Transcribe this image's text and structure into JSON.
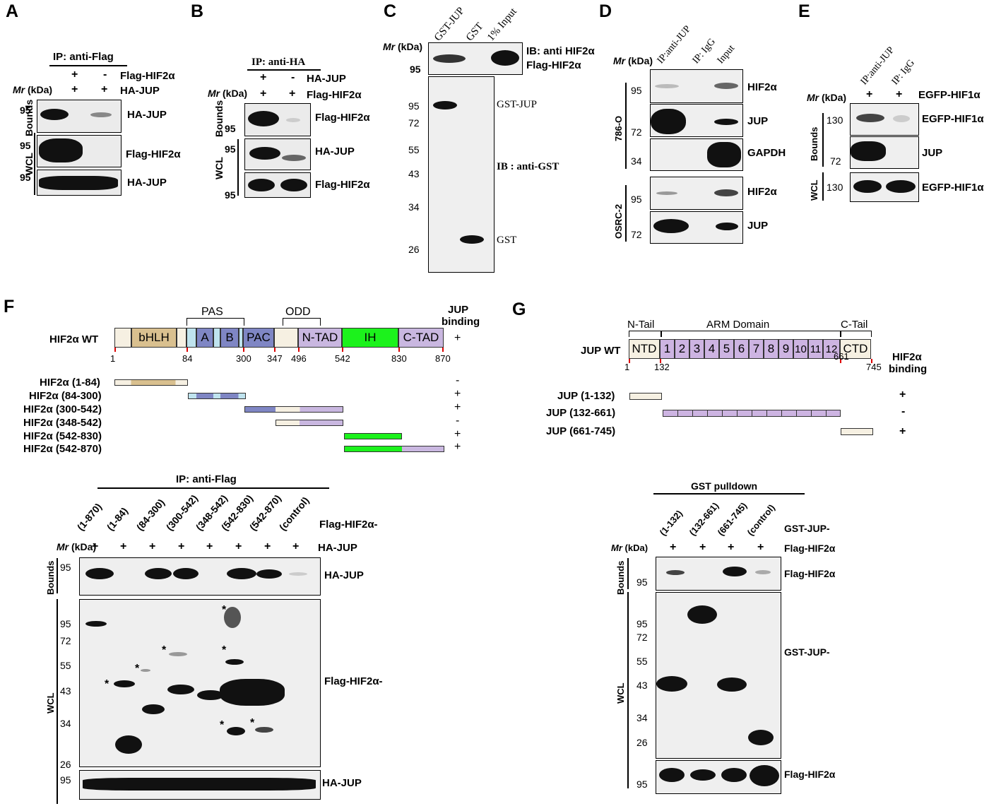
{
  "panels": {
    "A": "A",
    "B": "B",
    "C": "C",
    "D": "D",
    "E": "E",
    "F": "F",
    "G": "G"
  },
  "common": {
    "mr": "Mr",
    "kda": "(kDa)",
    "plus": "+",
    "minus": "-",
    "bounds": "Bounds",
    "wcl": "WCL"
  },
  "panelA": {
    "ip": "IP: anti-Flag",
    "row1": "Flag-HIF2α",
    "row2": "HA-JUP",
    "labels": [
      "HA-JUP",
      "Flag-HIF2α",
      "HA-JUP"
    ],
    "markers": [
      "95",
      "95",
      "95"
    ]
  },
  "panelB": {
    "ip": "IP: anti-HA",
    "row1": "HA-JUP",
    "row2": "Flag-HIF2α",
    "labels": [
      "Flag-HIF2α",
      "HA-JUP",
      "Flag-HIF2α"
    ],
    "markers": [
      "95",
      "95",
      "95"
    ]
  },
  "panelC": {
    "lanes": [
      "GST-JUP",
      "GST",
      "1% Input"
    ],
    "ib1": "IB: anti HIF2α",
    "ib1b": "Flag-HIF2α",
    "ib2": "IB : anti-GST",
    "gstjup": "GST-JUP",
    "gst": "GST",
    "markers_top": [
      "95"
    ],
    "markers": [
      "95",
      "72",
      "55",
      "43",
      "34",
      "26"
    ]
  },
  "panelD": {
    "lanes": [
      "IP:anti-JUP",
      "IP: IgG",
      "Input"
    ],
    "cell1": "786-O",
    "cell2": "OSRC-2",
    "labels": [
      "HIF2α",
      "JUP",
      "GAPDH",
      "HIF2α",
      "JUP"
    ],
    "markers": [
      "95",
      "72",
      "34",
      "95",
      "72"
    ]
  },
  "panelE": {
    "lanes": [
      "IP:anti-JUP",
      "IP: IgG"
    ],
    "row": "EGFP-HIF1α",
    "labels": [
      "EGFP-HIF1α",
      "JUP",
      "EGFP-HIF1α"
    ],
    "markers": [
      "130",
      "72",
      "130"
    ]
  },
  "panelF": {
    "wt": "HIF2α WT",
    "pas": "PAS",
    "odd": "ODD",
    "domains": [
      "bHLH",
      "A",
      "B",
      "PAC",
      "N-TAD",
      "IH",
      "C-TAD"
    ],
    "positions": [
      "1",
      "84",
      "300",
      "347",
      "496",
      "542",
      "830",
      "870"
    ],
    "binding_header": [
      "JUP",
      "binding"
    ],
    "constructs": [
      {
        "name": "HIF2α (1-84)",
        "binding": "-"
      },
      {
        "name": "HIF2α (84-300)",
        "binding": "+"
      },
      {
        "name": "HIF2α (300-542)",
        "binding": "+"
      },
      {
        "name": "HIF2α (348-542)",
        "binding": "-"
      },
      {
        "name": "HIF2α (542-830)",
        "binding": "+"
      },
      {
        "name": "HIF2α (542-870)",
        "binding": "+"
      }
    ],
    "wt_binding": "+",
    "ip": "IP: anti-Flag",
    "lanes": [
      "(1-870)",
      "(1-84)",
      "(84-300)",
      "(300-542)",
      "(348-542)",
      "(542-830)",
      "(542-870)",
      "(control)"
    ],
    "lane_suffix": "Flag-HIF2α-",
    "row": "HA-JUP",
    "labels": [
      "HA-JUP",
      "Flag-HIF2α-",
      "HA-JUP"
    ],
    "markers_b": [
      "95"
    ],
    "markers_w": [
      "95",
      "72",
      "55",
      "43",
      "34",
      "26"
    ],
    "markers_c": [
      "95"
    ],
    "star": "*"
  },
  "panelG": {
    "wt": "JUP WT",
    "ntail": "N-Tail",
    "arm": "ARM Domain",
    "ctail": "C-Tail",
    "domains": [
      "NTD",
      "1",
      "2",
      "3",
      "4",
      "5",
      "6",
      "7",
      "8",
      "9",
      "10",
      "11",
      "12",
      "CTD"
    ],
    "positions": [
      "1",
      "132",
      "661",
      "745"
    ],
    "binding_header": [
      "HIF2α",
      "binding"
    ],
    "constructs": [
      {
        "name": "JUP (1-132)",
        "binding": "+"
      },
      {
        "name": "JUP (132-661)",
        "binding": "-"
      },
      {
        "name": "JUP (661-745)",
        "binding": "+"
      }
    ],
    "pulldown": "GST pulldown",
    "lanes": [
      "(1-132)",
      "(132-661)",
      "(661-745)",
      "(control)"
    ],
    "lane_suffix": "GST-JUP-",
    "row": "Flag-HIF2α",
    "labels": [
      "Flag-HIF2α",
      "GST-JUP-",
      "Flag-HIF2α"
    ],
    "markers_b": [
      "95"
    ],
    "markers_w": [
      "95",
      "72",
      "55",
      "43",
      "34",
      "26"
    ],
    "markers_c": [
      "95"
    ]
  },
  "colors": {
    "bhlh": "#d9c08f",
    "pas": "#7f86c4",
    "light": "#bfe3ee",
    "ntad": "#c9b7e0",
    "ih": "#1cf21c",
    "ctad": "#c9b7e0",
    "cream": "#f6f0e2",
    "arm": "#cdb4e2"
  }
}
